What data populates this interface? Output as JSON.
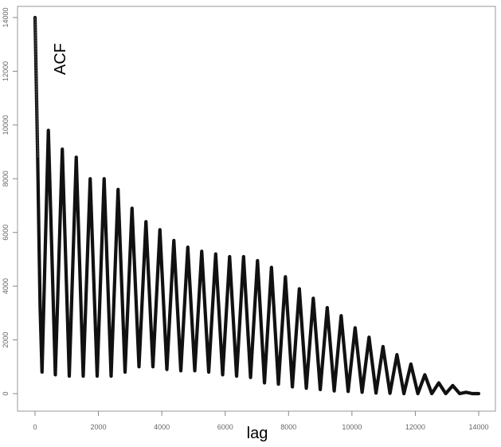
{
  "chart_data": {
    "type": "line",
    "title": "",
    "xlabel": "lag",
    "ylabel": "ACF",
    "xlim": [
      0,
      14000
    ],
    "ylim": [
      0,
      14000
    ],
    "x_ticks": [
      0,
      2000,
      4000,
      6000,
      8000,
      10000,
      12000,
      14000
    ],
    "y_ticks": [
      0,
      2000,
      4000,
      6000,
      8000,
      10000,
      12000,
      14000
    ],
    "x_tick_labels": [
      "0",
      "2000",
      "4000",
      "6000",
      "8000",
      "10000",
      "12000",
      "14000"
    ],
    "y_tick_labels": [
      "0",
      "2000",
      "4000",
      "6000",
      "8000",
      "10000",
      "12000",
      "14000"
    ],
    "grid": false,
    "line_color": "#111111",
    "series": [
      {
        "name": "",
        "oscillation_period": 440,
        "points": [
          [
            0,
            14000
          ],
          [
            40,
            11500
          ],
          [
            80,
            9000
          ],
          [
            120,
            6000
          ],
          [
            160,
            3200
          ],
          [
            220,
            800
          ],
          [
            420,
            9800
          ],
          [
            640,
            700
          ],
          [
            860,
            9100
          ],
          [
            1080,
            650
          ],
          [
            1300,
            8800
          ],
          [
            1520,
            650
          ],
          [
            1740,
            8000
          ],
          [
            1960,
            650
          ],
          [
            2180,
            8000
          ],
          [
            2400,
            650
          ],
          [
            2620,
            7600
          ],
          [
            2840,
            800
          ],
          [
            3060,
            6900
          ],
          [
            3280,
            1000
          ],
          [
            3500,
            6400
          ],
          [
            3720,
            1000
          ],
          [
            3940,
            6100
          ],
          [
            4160,
            900
          ],
          [
            4380,
            5700
          ],
          [
            4600,
            850
          ],
          [
            4820,
            5450
          ],
          [
            5040,
            850
          ],
          [
            5260,
            5300
          ],
          [
            5480,
            800
          ],
          [
            5700,
            5200
          ],
          [
            5920,
            700
          ],
          [
            6140,
            5100
          ],
          [
            6360,
            650
          ],
          [
            6580,
            5100
          ],
          [
            6800,
            600
          ],
          [
            7020,
            4950
          ],
          [
            7240,
            400
          ],
          [
            7460,
            4700
          ],
          [
            7680,
            350
          ],
          [
            7900,
            4350
          ],
          [
            8120,
            250
          ],
          [
            8340,
            3900
          ],
          [
            8560,
            200
          ],
          [
            8780,
            3550
          ],
          [
            9000,
            150
          ],
          [
            9220,
            3200
          ],
          [
            9440,
            100
          ],
          [
            9660,
            2900
          ],
          [
            9880,
            80
          ],
          [
            10100,
            2450
          ],
          [
            10320,
            50
          ],
          [
            10540,
            2100
          ],
          [
            10760,
            20
          ],
          [
            10980,
            1750
          ],
          [
            11200,
            10
          ],
          [
            11420,
            1450
          ],
          [
            11640,
            0
          ],
          [
            11860,
            1100
          ],
          [
            12080,
            0
          ],
          [
            12300,
            700
          ],
          [
            12520,
            0
          ],
          [
            12740,
            400
          ],
          [
            12960,
            0
          ],
          [
            13180,
            300
          ],
          [
            13400,
            0
          ],
          [
            13600,
            50
          ],
          [
            13800,
            0
          ],
          [
            14000,
            0
          ]
        ]
      }
    ]
  }
}
